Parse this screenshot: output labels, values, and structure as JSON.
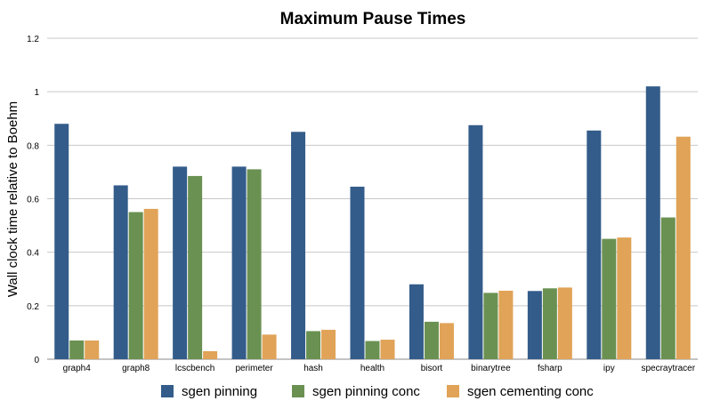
{
  "chart_data": {
    "type": "bar",
    "title": "Maximum Pause Times",
    "xlabel": "",
    "ylabel": "Wall clock time relative to Boehm",
    "ylim": [
      0,
      1.2
    ],
    "yticks": [
      "0",
      "0.2",
      "0.4",
      "0.6",
      "0.8",
      "1",
      "1.2"
    ],
    "grid": true,
    "legend_position": "bottom",
    "categories": [
      "graph4",
      "graph8",
      "lcscbench",
      "perimeter",
      "hash",
      "health",
      "bisort",
      "binarytree",
      "fsharp",
      "ipy",
      "specraytracer"
    ],
    "series": [
      {
        "name": "sgen pinning",
        "color": "#335c8a",
        "values": [
          0.88,
          0.65,
          0.72,
          0.72,
          0.85,
          0.645,
          0.28,
          0.875,
          0.255,
          0.855,
          1.02
        ]
      },
      {
        "name": "sgen pinning conc",
        "color": "#6a9152",
        "values": [
          0.07,
          0.55,
          0.685,
          0.71,
          0.105,
          0.068,
          0.14,
          0.248,
          0.265,
          0.45,
          0.53
        ]
      },
      {
        "name": "sgen cementing conc",
        "color": "#e0a357",
        "values": [
          0.07,
          0.562,
          0.03,
          0.092,
          0.11,
          0.073,
          0.135,
          0.256,
          0.268,
          0.455,
          0.832
        ]
      }
    ]
  }
}
